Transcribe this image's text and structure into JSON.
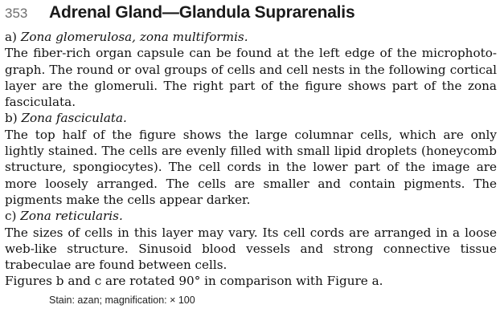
{
  "header": {
    "page_number": "353",
    "title": "Adrenal Gland—Glandula Suprarenalis"
  },
  "sections": [
    {
      "label": "a)",
      "title": "Zona glomerulosa, zona multiformis.",
      "text": "The fiber-rich organ capsule can be found at the left edge of the micropho­to­graph. The round or oval groups of cells and cell nests in the following corti­cal layer are the glomeruli. The right part of the figure shows part of the zona fasciculata."
    },
    {
      "label": "b)",
      "title": "Zona fasciculata.",
      "text": "The top half of the figure shows the large columnar cells, which are only lightly stained. The cells are evenly filled with small lipid droplets (honey­comb structure, spongiocytes). The cell cords in the lower part of the image are more loosely arranged. The cells are smaller and contain pigments. The pigments make the cells appear darker."
    },
    {
      "label": "c)",
      "title": "Zona reticularis.",
      "text": "The sizes of cells in this layer may vary. Its cell cords are arranged in a loose web-like structure. Sinusoid blood vessels and strong connective tissue trabeculae are found between cells."
    }
  ],
  "closing_text": "Figures b and c are rotated 90° in comparison with Figure a.",
  "caption": "Stain: azan; magnification: × 100"
}
